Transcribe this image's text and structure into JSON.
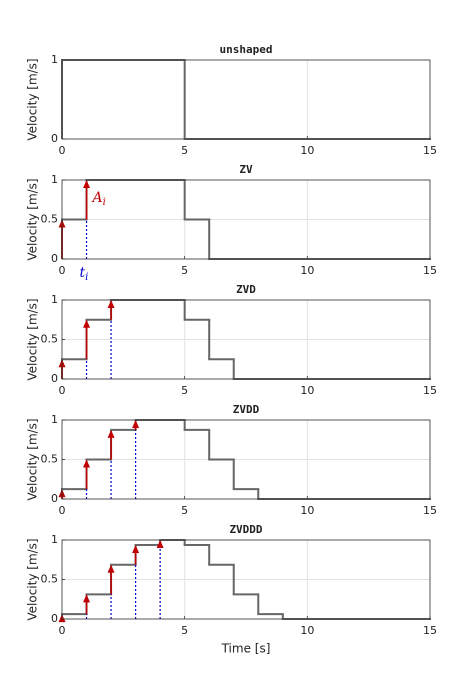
{
  "chart_data": [
    {
      "type": "line",
      "title": "unshaped",
      "ylabel": "Velocity [m/s]",
      "x": [
        0,
        5
      ],
      "values": [
        1,
        0
      ],
      "color": "#666666",
      "xlim": [
        0,
        15
      ],
      "xticks": [
        0,
        5,
        10,
        15
      ],
      "ylim": [
        0,
        1
      ],
      "yticks": [
        0,
        1
      ],
      "grid": true
    },
    {
      "type": "line",
      "title": "ZV",
      "ylabel": "Velocity [m/s]",
      "x": [
        0,
        1,
        5,
        6
      ],
      "values": [
        0.5,
        1,
        0.5,
        0
      ],
      "color": "#666666",
      "xlim": [
        0,
        15
      ],
      "xticks": [
        0,
        5,
        10,
        15
      ],
      "ylim": [
        0,
        1
      ],
      "yticks": [
        0,
        0.5,
        1
      ],
      "grid": true,
      "impulses": {
        "t": [
          0,
          1
        ],
        "amplitudes": [
          0.5,
          0.5
        ],
        "color": "#c00000",
        "dash_color": "#0000cc"
      },
      "annotations": {
        "amplitude": {
          "text": "A",
          "sub": "i"
        },
        "time": {
          "text": "t",
          "sub": "i"
        }
      }
    },
    {
      "type": "line",
      "title": "ZVD",
      "ylabel": "Velocity [m/s]",
      "x": [
        0,
        1,
        2,
        5,
        6,
        7
      ],
      "values": [
        0.25,
        0.75,
        1,
        0.75,
        0.25,
        0
      ],
      "color": "#666666",
      "xlim": [
        0,
        15
      ],
      "xticks": [
        0,
        5,
        10,
        15
      ],
      "ylim": [
        0,
        1
      ],
      "yticks": [
        0,
        0.5,
        1
      ],
      "grid": true,
      "impulses": {
        "t": [
          0,
          1,
          2
        ],
        "amplitudes": [
          0.25,
          0.5,
          0.25
        ],
        "color": "#c00000",
        "dash_color": "#0000cc"
      }
    },
    {
      "type": "line",
      "title": "ZVDD",
      "ylabel": "Velocity [m/s]",
      "x": [
        0,
        1,
        2,
        3,
        5,
        6,
        7,
        8
      ],
      "values": [
        0.125,
        0.5,
        0.875,
        1,
        0.875,
        0.5,
        0.125,
        0
      ],
      "color": "#666666",
      "xlim": [
        0,
        15
      ],
      "xticks": [
        0,
        5,
        10,
        15
      ],
      "ylim": [
        0,
        1
      ],
      "yticks": [
        0,
        0.5,
        1
      ],
      "grid": true,
      "impulses": {
        "t": [
          0,
          1,
          2,
          3
        ],
        "amplitudes": [
          0.125,
          0.375,
          0.375,
          0.125
        ],
        "color": "#c00000",
        "dash_color": "#0000cc"
      }
    },
    {
      "type": "line",
      "title": "ZVDDD",
      "ylabel": "Velocity [m/s]",
      "xlabel": "Time [s]",
      "x": [
        0,
        1,
        2,
        3,
        4,
        5,
        6,
        7,
        8,
        9
      ],
      "values": [
        0.0625,
        0.3125,
        0.6875,
        0.9375,
        1,
        0.9375,
        0.6875,
        0.3125,
        0.0625,
        0
      ],
      "color": "#666666",
      "xlim": [
        0,
        15
      ],
      "xticks": [
        0,
        5,
        10,
        15
      ],
      "ylim": [
        0,
        1
      ],
      "yticks": [
        0,
        0.5,
        1
      ],
      "grid": true,
      "impulses": {
        "t": [
          0,
          1,
          2,
          3,
          4
        ],
        "amplitudes": [
          0.0625,
          0.25,
          0.375,
          0.25,
          0.0625
        ],
        "color": "#c00000",
        "dash_color": "#0000cc"
      }
    }
  ]
}
